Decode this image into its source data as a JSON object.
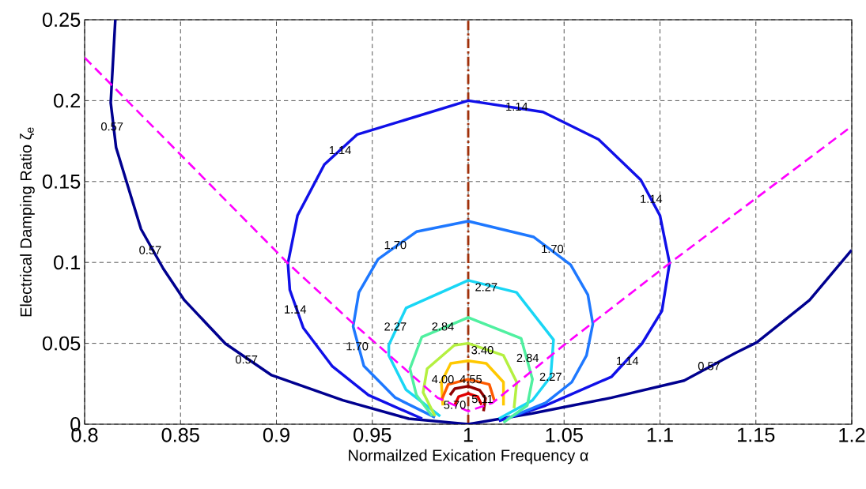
{
  "chart_data": {
    "type": "line",
    "xlabel": "Normailzed Exication Frequency α",
    "ylabel": "Electrical Damping Ratio ζ$_{e}$",
    "xlim": [
      0.8,
      1.2
    ],
    "ylim": [
      0,
      0.25
    ],
    "xticks": [
      0.8,
      0.85,
      0.9,
      0.95,
      1,
      1.05,
      1.1,
      1.15,
      1.2
    ],
    "yticks": [
      0,
      0.05,
      0.1,
      0.15,
      0.2,
      0.25
    ],
    "grid": true,
    "series": [
      {
        "color": "#00008f",
        "x": [
          0.816,
          0.8136,
          0.8164,
          0.8294,
          0.841,
          0.852,
          0.8734,
          0.8975,
          0.9346,
          0.969,
          1.0,
          1.0335,
          1.0748,
          1.1126,
          1.1394,
          1.1505,
          1.178,
          1.1999
        ],
        "values": [
          0.25,
          0.1987,
          0.171,
          0.1206,
          0.0962,
          0.0767,
          0.0498,
          0.0303,
          0.0148,
          0.0034,
          0.0,
          0.0067,
          0.0164,
          0.027,
          0.0441,
          0.0506,
          0.0767,
          0.1076
        ]
      },
      {
        "color": "#1010e8",
        "x": [
          0.976,
          0.948,
          0.929,
          0.914,
          0.907,
          0.906,
          0.911,
          0.925,
          0.942,
          1.0,
          1.039,
          1.068,
          1.09,
          1.1,
          1.105,
          1.101,
          1.0906,
          1.0748,
          1.0404,
          1.016
        ],
        "values": [
          0.0034,
          0.018,
          0.036,
          0.0596,
          0.083,
          0.0995,
          0.129,
          0.1605,
          0.179,
          0.2,
          0.193,
          0.176,
          0.151,
          0.129,
          0.0995,
          0.07,
          0.0498,
          0.0294,
          0.0116,
          0.002
        ]
      },
      {
        "color": "#1e78ff",
        "x": [
          0.9827,
          0.962,
          0.9456,
          0.94,
          0.943,
          0.953,
          0.973,
          1.0,
          1.0342,
          1.0534,
          1.0624,
          1.065,
          1.0617,
          1.054,
          1.0404,
          1.02
        ],
        "values": [
          0.0042,
          0.0164,
          0.036,
          0.0604,
          0.0815,
          0.102,
          0.119,
          0.1255,
          0.1157,
          0.0986,
          0.08,
          0.062,
          0.0425,
          0.026,
          0.0132,
          0.0034
        ]
      },
      {
        "color": "#19d6f5",
        "x": [
          0.9854,
          0.9676,
          0.9586,
          0.9586,
          0.9676,
          1.0,
          1.0252,
          1.0445,
          1.043,
          1.0335,
          1.016
        ],
        "values": [
          0.005,
          0.0213,
          0.0425,
          0.049,
          0.0718,
          0.0889,
          0.0815,
          0.0522,
          0.0294,
          0.0148,
          0.0034
        ]
      },
      {
        "color": "#50f0a0",
        "x": [
          0.9813,
          0.973,
          0.9696,
          0.9758,
          1.0,
          1.0276,
          1.0335,
          1.0308,
          1.0184
        ],
        "values": [
          0.005,
          0.018,
          0.0343,
          0.0539,
          0.066,
          0.053,
          0.0278,
          0.0116,
          0.001
        ]
      },
      {
        "color": "#b4f040",
        "x": [
          0.9827,
          0.9765,
          0.9786,
          0.9928,
          1.0,
          1.0184,
          1.0253,
          1.0239
        ],
        "values": [
          0.005,
          0.0197,
          0.0343,
          0.0488,
          0.05,
          0.0425,
          0.026,
          0.0099
        ]
      },
      {
        "color": "#ffc800",
        "x": [
          0.9868,
          0.986,
          0.9909,
          1.0,
          1.0094,
          1.0184,
          1.0184
        ],
        "values": [
          0.0116,
          0.026,
          0.0376,
          0.0392,
          0.0376,
          0.026,
          0.0116
        ]
      },
      {
        "color": "#ff5a00",
        "x": [
          0.986,
          0.9896,
          1.0,
          1.011,
          1.0136
        ],
        "values": [
          0.0148,
          0.0246,
          0.0278,
          0.0246,
          0.0148
        ]
      },
      {
        "color": "#900000",
        "x": [
          0.9905,
          0.993,
          1.0,
          1.006,
          1.009,
          1.008
        ],
        "values": [
          0.018,
          0.022,
          0.0235,
          0.021,
          0.016,
          0.008
        ]
      },
      {
        "color": "#e00000",
        "x": [
          0.993,
          0.995,
          1.0,
          1.005,
          1.007
        ],
        "values": [
          0.012,
          0.017,
          0.019,
          0.017,
          0.012
        ]
      },
      {
        "color": "#ff00ff",
        "line_style": "dashed",
        "x": [
          0.8,
          0.906,
          0.9388,
          0.984,
          1.0,
          1.0127,
          1.05,
          1.105,
          1.1998
        ],
        "values": [
          0.2266,
          0.0995,
          0.0636,
          0.0164,
          0.008,
          0.0132,
          0.049,
          0.0995,
          0.184
        ]
      }
    ],
    "ref_lines": [
      {
        "axis": "x",
        "value": 1,
        "color": "#a0300a",
        "line_style": "dashdot"
      }
    ],
    "annotations": [
      {
        "text": "0.57",
        "x": 0.8143,
        "y": 0.184
      },
      {
        "text": "0.57",
        "x": 0.8342,
        "y": 0.1076
      },
      {
        "text": "0.57",
        "x": 0.8844,
        "y": 0.04
      },
      {
        "text": "0.57",
        "x": 1.1256,
        "y": 0.036
      },
      {
        "text": "1.14",
        "x": 0.9332,
        "y": 0.1694
      },
      {
        "text": "1.14",
        "x": 0.9098,
        "y": 0.071
      },
      {
        "text": "1.14",
        "x": 1.0253,
        "y": 0.1963
      },
      {
        "text": "1.14",
        "x": 1.0954,
        "y": 0.1393
      },
      {
        "text": "1.14",
        "x": 1.083,
        "y": 0.0392
      },
      {
        "text": "1.70",
        "x": 0.962,
        "y": 0.1108
      },
      {
        "text": "1.70",
        "x": 0.9421,
        "y": 0.0482
      },
      {
        "text": "1.70",
        "x": 1.0439,
        "y": 0.1084
      },
      {
        "text": "2.27",
        "x": 1.0094,
        "y": 0.0848
      },
      {
        "text": "2.27",
        "x": 0.962,
        "y": 0.0604
      },
      {
        "text": "2.27",
        "x": 1.043,
        "y": 0.0294
      },
      {
        "text": "2.84",
        "x": 0.9868,
        "y": 0.0604
      },
      {
        "text": "2.84",
        "x": 1.031,
        "y": 0.041
      },
      {
        "text": "3.40",
        "x": 1.0074,
        "y": 0.0458
      },
      {
        "text": "4.00",
        "x": 0.9868,
        "y": 0.0278
      },
      {
        "text": "4.55",
        "x": 1.0014,
        "y": 0.0278
      },
      {
        "text": "5.11",
        "x": 1.0074,
        "y": 0.0156
      },
      {
        "text": "5.70",
        "x": 0.993,
        "y": 0.012
      }
    ]
  }
}
